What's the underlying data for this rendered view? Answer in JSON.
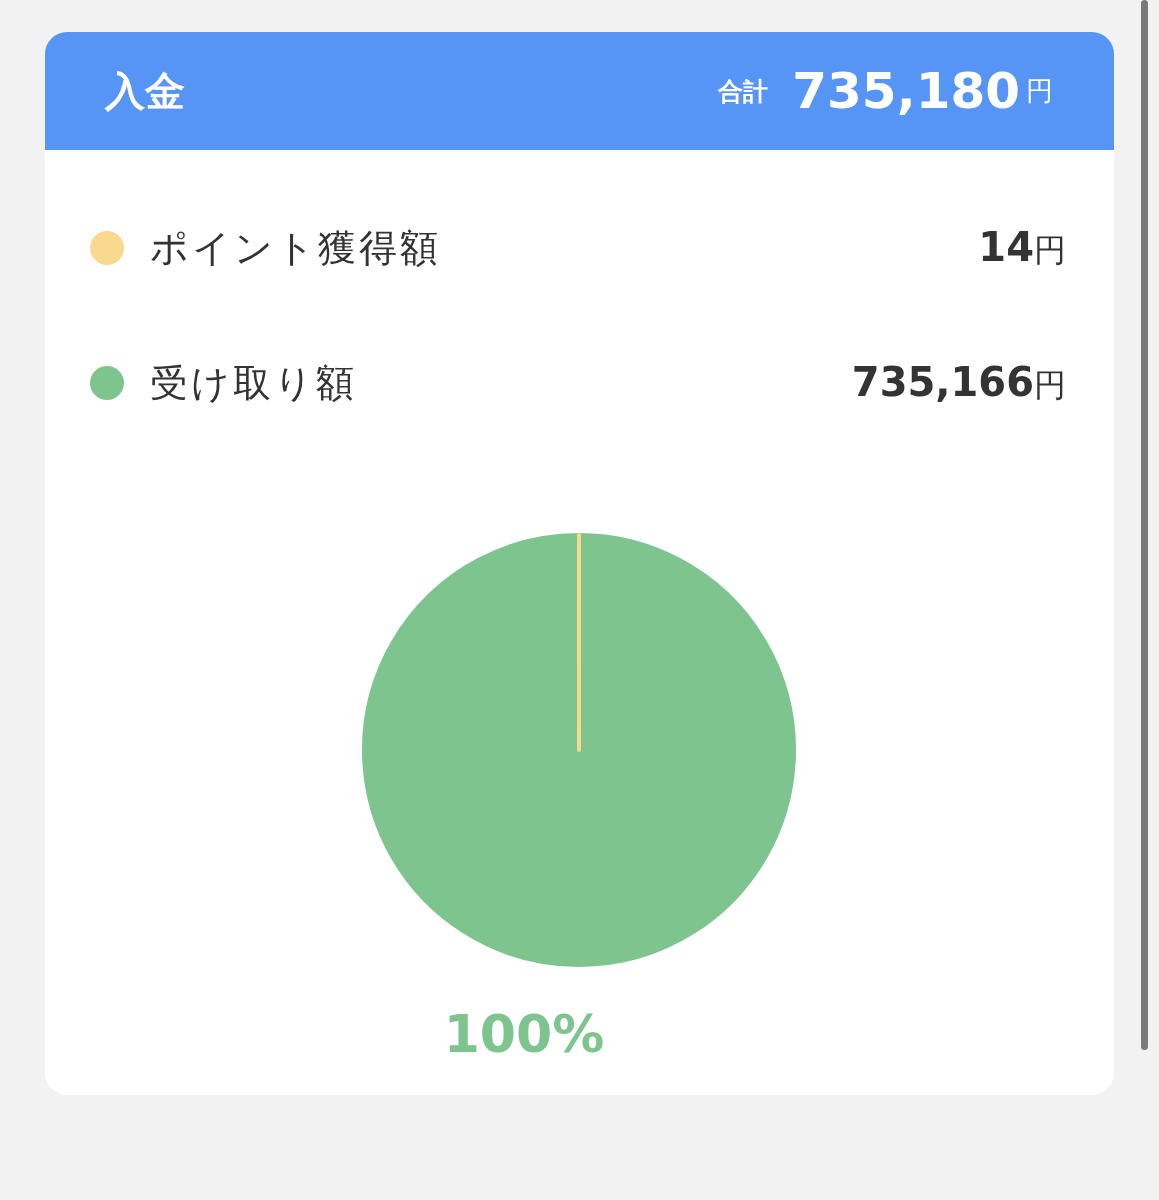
{
  "chart_data": {
    "type": "pie",
    "title": "入金",
    "categories": [
      "ポイント獲得額",
      "受け取り額"
    ],
    "values": [
      14,
      735166
    ],
    "colors": [
      "#f9d98e",
      "#7dc48e"
    ],
    "value_labels": [
      "14円",
      "735,166円"
    ],
    "legend": "top",
    "annotations": [
      "合計 735,180円",
      "100%"
    ]
  }
}
